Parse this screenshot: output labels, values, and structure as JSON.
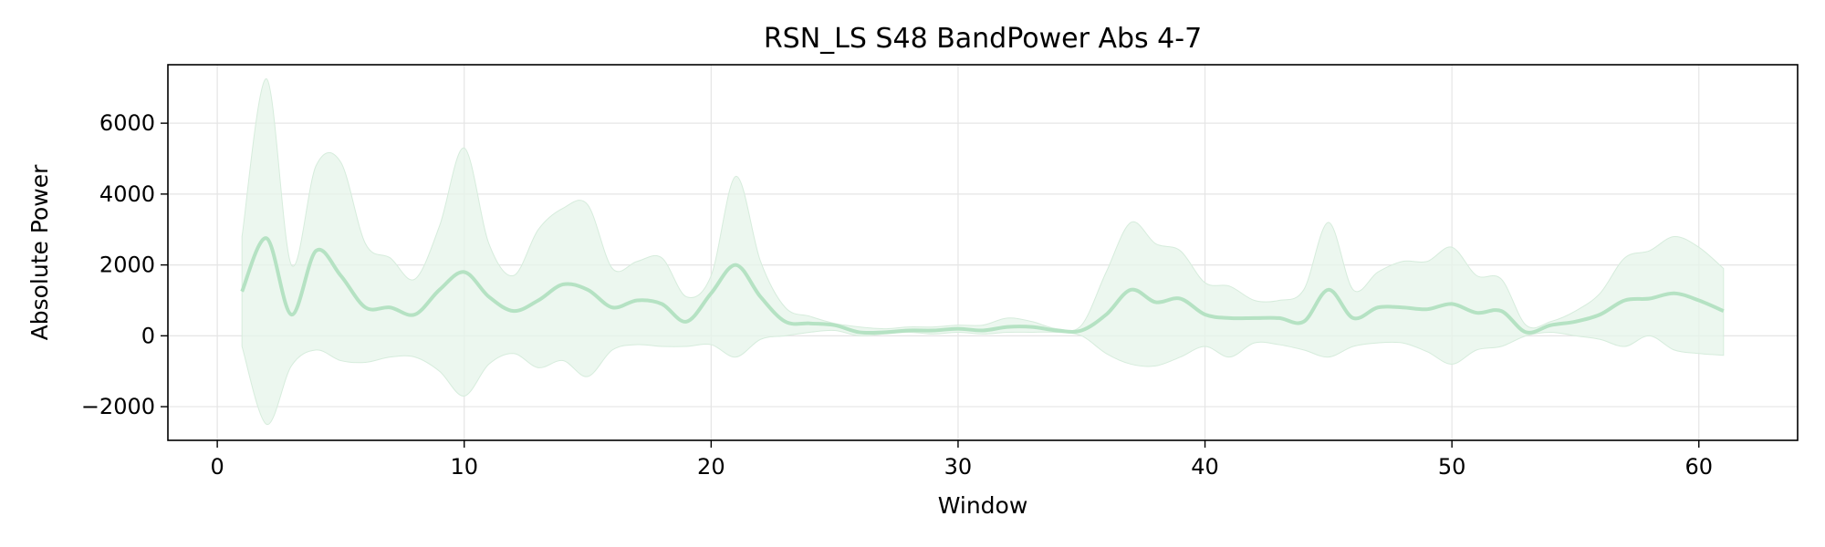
{
  "chart_data": {
    "type": "line",
    "title": "RSN_LS S48 BandPower Abs 4-7",
    "xlabel": "Window",
    "ylabel": "Absolute Power",
    "xlim": [
      -2,
      64
    ],
    "ylim": [
      -2950,
      7650
    ],
    "x_ticks": [
      0,
      10,
      20,
      30,
      40,
      50,
      60
    ],
    "y_ticks": [
      -2000,
      0,
      2000,
      4000,
      6000
    ],
    "x_tick_labels": [
      "0",
      "10",
      "20",
      "30",
      "40",
      "50",
      "60"
    ],
    "y_tick_labels": [
      "−2000",
      "0",
      "2000",
      "4000",
      "6000"
    ],
    "grid": true,
    "legend": "none",
    "colors": {
      "line": "#b5e2c3",
      "band": "#e6f4ea",
      "band_edge": "#d6ecdc",
      "grid": "#e5e5e5",
      "axes": "#000000"
    },
    "series": [
      {
        "x": [
          1,
          2,
          3,
          4,
          5,
          6,
          7,
          8,
          9,
          10,
          11,
          12,
          13,
          14,
          15,
          16,
          17,
          18,
          19,
          20,
          21,
          22,
          23,
          24,
          25,
          26,
          27,
          28,
          29,
          30,
          31,
          32,
          33,
          34,
          35,
          36,
          37,
          38,
          39,
          40,
          41,
          42,
          43,
          44,
          45,
          46,
          47,
          48,
          49,
          50,
          51,
          52,
          53,
          54,
          55,
          56,
          57,
          58,
          59,
          60,
          61
        ],
        "values": [
          1250,
          2750,
          600,
          2400,
          1700,
          800,
          800,
          600,
          1300,
          1800,
          1100,
          700,
          1000,
          1450,
          1300,
          800,
          1000,
          900,
          400,
          1200,
          2000,
          1100,
          400,
          350,
          300,
          100,
          100,
          150,
          150,
          200,
          150,
          250,
          250,
          150,
          150,
          600,
          1300,
          950,
          1050,
          600,
          500,
          500,
          500,
          400,
          1300,
          500,
          800,
          800,
          750,
          900,
          650,
          700,
          100,
          300,
          400,
          600,
          1000,
          1050,
          1200,
          1000,
          700
        ],
        "upper": [
          2800,
          7250,
          2000,
          4800,
          4900,
          2600,
          2200,
          1600,
          3100,
          5300,
          2600,
          1700,
          3000,
          3600,
          3700,
          1900,
          2100,
          2200,
          1100,
          1700,
          4500,
          2100,
          800,
          550,
          350,
          250,
          200,
          250,
          250,
          300,
          300,
          500,
          400,
          200,
          300,
          1800,
          3200,
          2600,
          2400,
          1500,
          1400,
          1000,
          1000,
          1300,
          3200,
          1300,
          1800,
          2100,
          2100,
          2500,
          1700,
          1600,
          300,
          400,
          700,
          1200,
          2200,
          2400,
          2800,
          2500,
          1900
        ],
        "lower": [
          -300,
          -2500,
          -850,
          -400,
          -700,
          -750,
          -600,
          -600,
          -1000,
          -1700,
          -800,
          -500,
          -900,
          -700,
          -1150,
          -400,
          -250,
          -300,
          -300,
          -250,
          -600,
          -100,
          0,
          100,
          150,
          0,
          50,
          100,
          50,
          100,
          50,
          100,
          100,
          100,
          0,
          -500,
          -800,
          -850,
          -600,
          -300,
          -600,
          -200,
          -250,
          -400,
          -600,
          -300,
          -200,
          -200,
          -450,
          -800,
          -400,
          -300,
          0,
          100,
          0,
          -100,
          -300,
          0,
          -400,
          -500,
          -550
        ]
      }
    ]
  }
}
